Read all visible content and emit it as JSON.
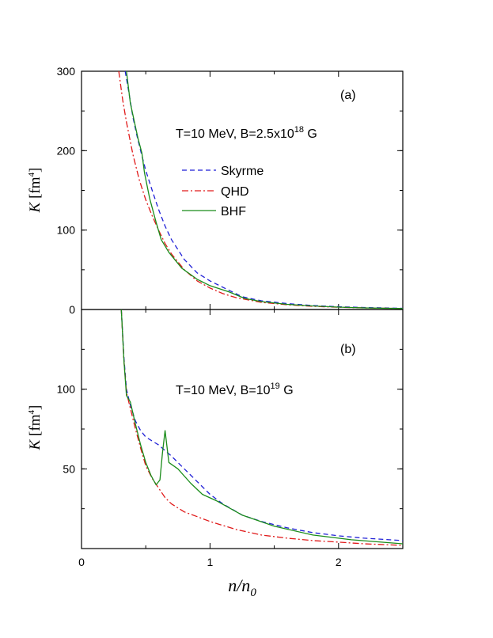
{
  "chart_data": [
    {
      "panel": "(a)",
      "type": "line",
      "annotation": {
        "prefix": "T=10 MeV, B=2.5x10",
        "exp": "18",
        "suffix": " G"
      },
      "ylabel": {
        "var": "K",
        "unit": " [fm",
        "exp": "4",
        "close": "]"
      },
      "xlim": [
        0,
        2.5
      ],
      "ylim": [
        0,
        300
      ],
      "xticks": [
        {
          "v": 0,
          "label": ""
        },
        {
          "v": 1,
          "label": ""
        },
        {
          "v": 2,
          "label": ""
        }
      ],
      "yticks": [
        {
          "v": 0,
          "label": "0"
        },
        {
          "v": 100,
          "label": "100"
        },
        {
          "v": 200,
          "label": "200"
        },
        {
          "v": 300,
          "label": "300"
        }
      ],
      "legend": {
        "position": "upper-middle",
        "entries": [
          "Skyrme",
          "QHD",
          "BHF"
        ]
      },
      "series": [
        {
          "name": "Skyrme",
          "color": "#1f1fd6",
          "dash": "6,4",
          "x": [
            0.34,
            0.37,
            0.4,
            0.43,
            0.46,
            0.5,
            0.55,
            0.6,
            0.65,
            0.7,
            0.8,
            0.9,
            1.0,
            1.1,
            1.25,
            1.4,
            1.6,
            1.8,
            2.0,
            2.2,
            2.5
          ],
          "y": [
            300,
            272,
            242,
            220,
            200,
            175,
            150,
            126,
            105,
            88,
            63,
            46,
            36,
            28,
            16,
            11,
            7.5,
            5,
            3.5,
            2.5,
            1.5
          ]
        },
        {
          "name": "QHD",
          "color": "#e01a1a",
          "dash": "8,3,2,3",
          "x": [
            0.29,
            0.32,
            0.35,
            0.4,
            0.45,
            0.5,
            0.55,
            0.6,
            0.65,
            0.7,
            0.8,
            0.9,
            1.0,
            1.1,
            1.2,
            1.4,
            1.6,
            1.8,
            2.0,
            2.2,
            2.5
          ],
          "y": [
            300,
            264,
            236,
            195,
            163,
            138,
            118,
            100,
            83,
            70,
            50,
            36,
            27,
            20,
            15,
            9,
            6,
            4,
            2.8,
            2,
            1.2
          ]
        },
        {
          "name": "BHF",
          "color": "#1a8c1a",
          "dash": "",
          "x": [
            0.35,
            0.38,
            0.42,
            0.44,
            0.47,
            0.49,
            0.53,
            0.58,
            0.62,
            0.68,
            0.78,
            0.9,
            1.0,
            1.15,
            1.27,
            1.4,
            1.6,
            1.8,
            2.0,
            2.2,
            2.5
          ],
          "y": [
            300,
            260,
            230,
            215,
            197,
            172,
            140,
            110,
            88,
            72,
            52,
            38,
            30,
            22,
            14,
            10,
            6.5,
            4.5,
            3,
            2,
            1.2
          ]
        }
      ]
    },
    {
      "panel": "(b)",
      "type": "line",
      "annotation": {
        "prefix": "T=10 MeV, B=10",
        "exp": "19",
        "suffix": " G"
      },
      "ylabel": {
        "var": "K",
        "unit": " [fm",
        "exp": "4",
        "close": "]"
      },
      "xlabel": {
        "var": "n/n",
        "sub": "0"
      },
      "xlim": [
        0,
        2.5
      ],
      "ylim": [
        0,
        150
      ],
      "xticks": [
        {
          "v": 0,
          "label": "0"
        },
        {
          "v": 1,
          "label": "1"
        },
        {
          "v": 2,
          "label": "2"
        }
      ],
      "yticks": [
        {
          "v": 50,
          "label": "50"
        },
        {
          "v": 100,
          "label": "100"
        }
      ],
      "series": [
        {
          "name": "Skyrme",
          "color": "#1f1fd6",
          "dash": "6,4",
          "x": [
            0.31,
            0.33,
            0.35,
            0.38,
            0.42,
            0.46,
            0.5,
            0.55,
            0.6,
            0.7,
            0.8,
            0.9,
            1.0,
            1.1,
            1.25,
            1.4,
            1.6,
            1.8,
            2.0,
            2.2,
            2.5
          ],
          "y": [
            150,
            120,
            100,
            90,
            80,
            74,
            70,
            67.5,
            65,
            58,
            50,
            42,
            34,
            28,
            21,
            17,
            13,
            10,
            8,
            6.5,
            5
          ]
        },
        {
          "name": "QHD",
          "color": "#e01a1a",
          "dash": "8,3,2,3",
          "x": [
            0.31,
            0.33,
            0.35,
            0.38,
            0.42,
            0.46,
            0.5,
            0.55,
            0.6,
            0.65,
            0.7,
            0.8,
            0.9,
            1.0,
            1.2,
            1.4,
            1.6,
            1.8,
            2.0,
            2.2,
            2.5
          ],
          "y": [
            150,
            118,
            98,
            88,
            75,
            63,
            52,
            44,
            38,
            32,
            28,
            23,
            20,
            17,
            12,
            8.5,
            6.5,
            5,
            4,
            3,
            2
          ]
        },
        {
          "name": "BHF",
          "color": "#1a8c1a",
          "dash": "",
          "x": [
            0.31,
            0.33,
            0.35,
            0.38,
            0.42,
            0.46,
            0.5,
            0.54,
            0.58,
            0.61,
            0.63,
            0.65,
            0.68,
            0.75,
            0.85,
            0.94,
            1.05,
            1.25,
            1.5,
            1.8,
            2.1,
            2.5
          ],
          "y": [
            150,
            118,
            96,
            92,
            78,
            65,
            54,
            46,
            40,
            43,
            60,
            74,
            54,
            50,
            41,
            34,
            30,
            21,
            14,
            8.5,
            5.5,
            3
          ]
        }
      ]
    }
  ]
}
